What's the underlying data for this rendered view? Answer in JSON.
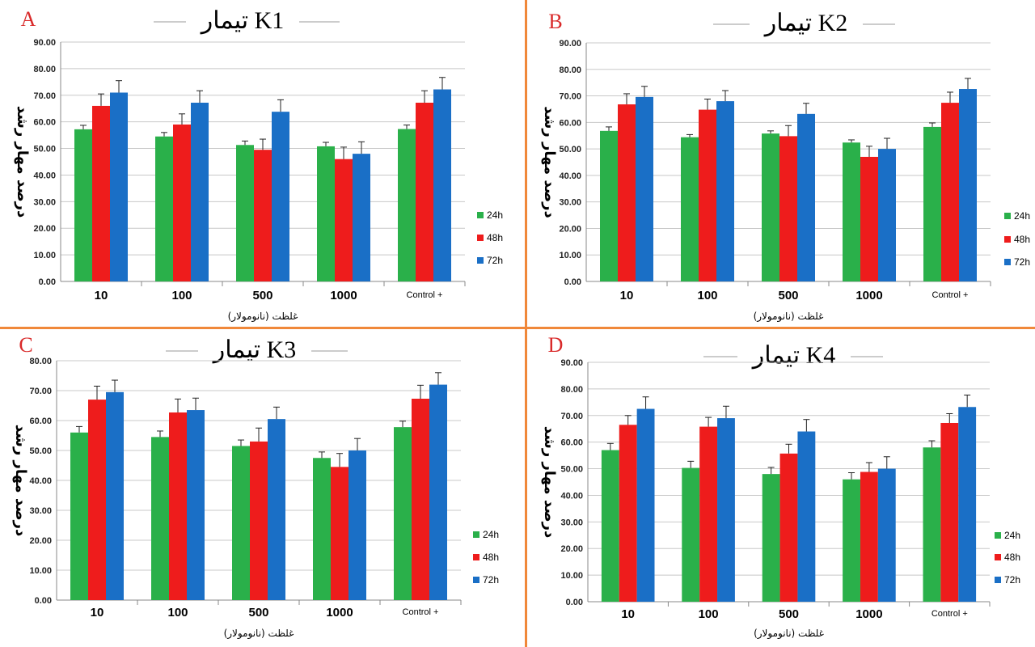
{
  "colors": {
    "24h": "#2ab04a",
    "48h": "#ee1c1c",
    "72h": "#1a6fc6",
    "divider": "#f0883a",
    "letter": "#d92a2a"
  },
  "chart_data": [
    {
      "type": "bar",
      "panel_letter": "A",
      "title": "تیمار K1",
      "xlabel": "غلظت (نانومولار)",
      "ylabel": "درصد مهار رشد",
      "categories": [
        "10",
        "100",
        "500",
        "1000",
        "Control +"
      ],
      "ylim": [
        0,
        90
      ],
      "yticks": [
        "0.00",
        "10.00",
        "20.00",
        "30.00",
        "40.00",
        "50.00",
        "60.00",
        "70.00",
        "80.00",
        "90.00"
      ],
      "legend_position": "right",
      "series": [
        {
          "name": "24h",
          "values": [
            57.2,
            54.5,
            51.3,
            50.8,
            57.3
          ],
          "errors": [
            1.5,
            1.5,
            1.5,
            1.5,
            1.5
          ]
        },
        {
          "name": "48h",
          "values": [
            66.0,
            59.0,
            49.5,
            46.0,
            67.2
          ],
          "errors": [
            4.5,
            4.0,
            4.0,
            4.5,
            4.5
          ]
        },
        {
          "name": "72h",
          "values": [
            71.0,
            67.2,
            63.8,
            48.0,
            72.2
          ],
          "errors": [
            4.5,
            4.5,
            4.5,
            4.5,
            4.5
          ]
        }
      ]
    },
    {
      "type": "bar",
      "panel_letter": "B",
      "title": "تیمار K2",
      "xlabel": "غلظت (نانومولار)",
      "ylabel": "درصد مهار رشد",
      "categories": [
        "10",
        "100",
        "500",
        "1000",
        "Control +"
      ],
      "ylim": [
        0,
        90
      ],
      "yticks": [
        "0.00",
        "10.00",
        "20.00",
        "30.00",
        "40.00",
        "50.00",
        "60.00",
        "70.00",
        "80.00",
        "90.00"
      ],
      "legend_position": "right",
      "series": [
        {
          "name": "24h",
          "values": [
            56.8,
            54.4,
            55.8,
            52.4,
            58.3
          ],
          "errors": [
            1.5,
            1.0,
            1.0,
            1.0,
            1.5
          ]
        },
        {
          "name": "48h",
          "values": [
            66.8,
            64.8,
            54.8,
            47.0,
            67.4
          ],
          "errors": [
            4.0,
            4.0,
            4.0,
            4.0,
            4.0
          ]
        },
        {
          "name": "72h",
          "values": [
            69.6,
            68.0,
            63.2,
            50.0,
            72.6
          ],
          "errors": [
            4.0,
            4.0,
            4.0,
            4.0,
            4.0
          ]
        }
      ]
    },
    {
      "type": "bar",
      "panel_letter": "C",
      "title": "تیمار K3",
      "xlabel": "غلظت (نانومولار)",
      "ylabel": "درصد مهار رشد",
      "categories": [
        "10",
        "100",
        "500",
        "1000",
        "Control +"
      ],
      "ylim": [
        0,
        80
      ],
      "yticks": [
        "0.00",
        "10.00",
        "20.00",
        "30.00",
        "40.00",
        "50.00",
        "60.00",
        "70.00",
        "80.00"
      ],
      "legend_position": "right",
      "series": [
        {
          "name": "24h",
          "values": [
            56.0,
            54.5,
            51.5,
            47.5,
            57.8
          ],
          "errors": [
            2.0,
            2.0,
            2.0,
            2.0,
            2.0
          ]
        },
        {
          "name": "48h",
          "values": [
            67.0,
            62.7,
            53.0,
            44.5,
            67.3
          ],
          "errors": [
            4.5,
            4.5,
            4.5,
            4.5,
            4.5
          ]
        },
        {
          "name": "72h",
          "values": [
            69.5,
            63.5,
            60.5,
            50.0,
            72.0
          ],
          "errors": [
            4.0,
            4.0,
            4.0,
            4.0,
            4.0
          ]
        }
      ]
    },
    {
      "type": "bar",
      "panel_letter": "D",
      "title": "تیمار K4",
      "xlabel": "غلظت (نانومولار)",
      "ylabel": "درصد مهار رشد",
      "categories": [
        "10",
        "100",
        "500",
        "1000",
        "Control +"
      ],
      "ylim": [
        0,
        90
      ],
      "yticks": [
        "0.00",
        "10.00",
        "20.00",
        "30.00",
        "40.00",
        "50.00",
        "60.00",
        "70.00",
        "80.00",
        "90.00"
      ],
      "legend_position": "right",
      "series": [
        {
          "name": "24h",
          "values": [
            57.0,
            50.3,
            48.0,
            46.0,
            58.0
          ],
          "errors": [
            2.5,
            2.5,
            2.5,
            2.5,
            2.5
          ]
        },
        {
          "name": "48h",
          "values": [
            66.5,
            65.8,
            55.7,
            48.8,
            67.2
          ],
          "errors": [
            3.5,
            3.5,
            3.5,
            3.5,
            3.5
          ]
        },
        {
          "name": "72h",
          "values": [
            72.5,
            69.0,
            64.0,
            50.0,
            73.2
          ],
          "errors": [
            4.5,
            4.5,
            4.5,
            4.5,
            4.5
          ]
        }
      ]
    }
  ]
}
